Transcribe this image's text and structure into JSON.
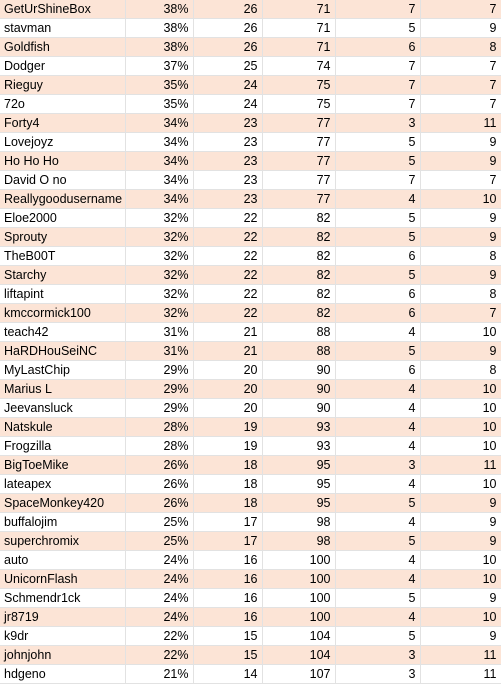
{
  "table": {
    "rows": [
      [
        "GetUrShineBox",
        "38%",
        "26",
        "71",
        "7",
        "7"
      ],
      [
        "stavman",
        "38%",
        "26",
        "71",
        "5",
        "9"
      ],
      [
        "Goldfish",
        "38%",
        "26",
        "71",
        "6",
        "8"
      ],
      [
        "Dodger",
        "37%",
        "25",
        "74",
        "7",
        "7"
      ],
      [
        "Rieguy",
        "35%",
        "24",
        "75",
        "7",
        "7"
      ],
      [
        "72o",
        "35%",
        "24",
        "75",
        "7",
        "7"
      ],
      [
        "Forty4",
        "34%",
        "23",
        "77",
        "3",
        "11"
      ],
      [
        "Lovejoyz",
        "34%",
        "23",
        "77",
        "5",
        "9"
      ],
      [
        "Ho Ho Ho",
        "34%",
        "23",
        "77",
        "5",
        "9"
      ],
      [
        "David O no",
        "34%",
        "23",
        "77",
        "7",
        "7"
      ],
      [
        "Reallygoodusername",
        "34%",
        "23",
        "77",
        "4",
        "10"
      ],
      [
        "Eloe2000",
        "32%",
        "22",
        "82",
        "5",
        "9"
      ],
      [
        "Sprouty",
        "32%",
        "22",
        "82",
        "5",
        "9"
      ],
      [
        "TheB00T",
        "32%",
        "22",
        "82",
        "6",
        "8"
      ],
      [
        "Starchy",
        "32%",
        "22",
        "82",
        "5",
        "9"
      ],
      [
        "liftapint",
        "32%",
        "22",
        "82",
        "6",
        "8"
      ],
      [
        "kmccormick100",
        "32%",
        "22",
        "82",
        "6",
        "7"
      ],
      [
        "teach42",
        "31%",
        "21",
        "88",
        "4",
        "10"
      ],
      [
        "HaRDHouSeiNC",
        "31%",
        "21",
        "88",
        "5",
        "9"
      ],
      [
        "MyLastChip",
        "29%",
        "20",
        "90",
        "6",
        "8"
      ],
      [
        "Marius L",
        "29%",
        "20",
        "90",
        "4",
        "10"
      ],
      [
        "Jeevansluck",
        "29%",
        "20",
        "90",
        "4",
        "10"
      ],
      [
        "Natskule",
        "28%",
        "19",
        "93",
        "4",
        "10"
      ],
      [
        "Frogzilla",
        "28%",
        "19",
        "93",
        "4",
        "10"
      ],
      [
        "BigToeMike",
        "26%",
        "18",
        "95",
        "3",
        "11"
      ],
      [
        "lateapex",
        "26%",
        "18",
        "95",
        "4",
        "10"
      ],
      [
        "SpaceMonkey420",
        "26%",
        "18",
        "95",
        "5",
        "9"
      ],
      [
        "buffalojim",
        "25%",
        "17",
        "98",
        "4",
        "9"
      ],
      [
        "superchromix",
        "25%",
        "17",
        "98",
        "5",
        "9"
      ],
      [
        "auto",
        "24%",
        "16",
        "100",
        "4",
        "10"
      ],
      [
        "UnicornFlash",
        "24%",
        "16",
        "100",
        "4",
        "10"
      ],
      [
        "Schmendr1ck",
        "24%",
        "16",
        "100",
        "5",
        "9"
      ],
      [
        "jr8719",
        "24%",
        "16",
        "100",
        "4",
        "10"
      ],
      [
        "k9dr",
        "22%",
        "15",
        "104",
        "5",
        "9"
      ],
      [
        "johnjohn",
        "22%",
        "15",
        "104",
        "3",
        "11"
      ],
      [
        "hdgeno",
        "21%",
        "14",
        "107",
        "3",
        "11"
      ]
    ]
  }
}
